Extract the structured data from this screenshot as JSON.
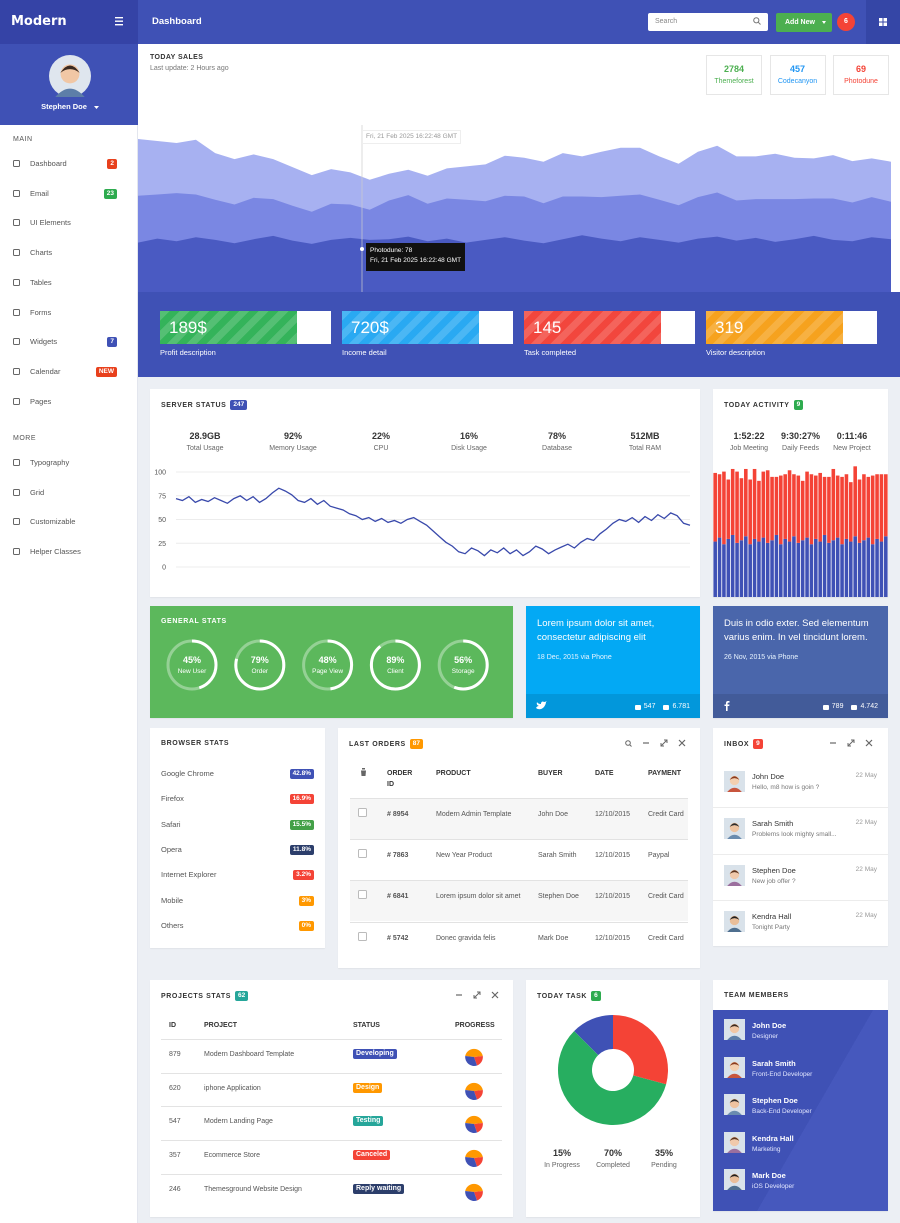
{
  "brand": "Modern",
  "header": {
    "title": "Dashboard",
    "search": "Search",
    "add_new": "Add New",
    "notifications": "6"
  },
  "profile": {
    "name": "Stephen Doe"
  },
  "sidebar": {
    "main": "MAIN",
    "items": [
      {
        "label": "Dashboard",
        "badge": "2",
        "badge_color": "#e8401c"
      },
      {
        "label": "Email",
        "badge": "23",
        "badge_color": "#2eab4f"
      },
      {
        "label": "UI Elements"
      },
      {
        "label": "Charts"
      },
      {
        "label": "Tables"
      },
      {
        "label": "Forms"
      },
      {
        "label": "Widgets",
        "badge": "7",
        "badge_color": "#3f51b5"
      },
      {
        "label": "Calendar",
        "badge": "NEW",
        "badge_color": "#e8401c"
      },
      {
        "label": "Pages"
      }
    ],
    "more": "MORE",
    "more_items": [
      {
        "label": "Typography"
      },
      {
        "label": "Grid"
      },
      {
        "label": "Customizable"
      },
      {
        "label": "Helper Classes"
      }
    ]
  },
  "sales": {
    "title": "TODAY SALES",
    "subtitle": "Last update: 2 Hours ago",
    "sources": [
      {
        "value": 2784,
        "label": "Themeforest",
        "color": "#4caf50"
      },
      {
        "value": 457,
        "label": "Codecanyon",
        "color": "#2196f3"
      },
      {
        "value": 69,
        "label": "Photodune",
        "color": "#f44336"
      }
    ],
    "chart": {
      "type": "area",
      "stacked": true,
      "ylim": [
        0,
        250
      ],
      "series": [
        {
          "color": "#4a5ac2",
          "values": [
            74,
            80,
            76,
            82,
            78,
            73,
            79,
            84,
            77,
            72,
            78,
            81,
            78,
            79,
            83,
            76,
            80,
            74,
            78,
            82,
            77,
            73,
            79,
            85,
            80,
            76,
            82,
            78,
            74,
            80,
            83,
            77,
            81,
            75,
            79,
            84,
            78,
            76,
            82,
            79
          ]
        },
        {
          "color": "#7a87e3",
          "values": [
            70,
            66,
            72,
            64,
            60,
            58,
            62,
            55,
            52,
            48,
            54,
            50,
            45,
            58,
            62,
            56,
            60,
            64,
            58,
            62,
            66,
            60,
            64,
            58,
            62,
            68,
            64,
            60,
            56,
            62,
            66,
            60,
            58,
            64,
            60,
            56,
            62,
            58,
            60,
            56
          ]
        },
        {
          "color": "#a7b1f1",
          "values": [
            85,
            80,
            75,
            82,
            70,
            68,
            65,
            60,
            58,
            55,
            52,
            48,
            45,
            40,
            38,
            42,
            45,
            50,
            55,
            60,
            58,
            62,
            65,
            60,
            68,
            72,
            70,
            65,
            62,
            68,
            70,
            66,
            64,
            68,
            62,
            60,
            65,
            62,
            58,
            60
          ]
        }
      ],
      "tooltip": {
        "date": "Fri, 21 Feb 2025 16:22:48 GMT",
        "text": "Photodune: 78"
      }
    },
    "boxes": [
      {
        "value": "189$",
        "label": "Profit description",
        "color": "#34b35a"
      },
      {
        "value": "720$",
        "label": "Income detail",
        "color": "#29a9f2"
      },
      {
        "value": "145",
        "label": "Task completed",
        "color": "#f2463d"
      },
      {
        "value": "319",
        "label": "Visitor description",
        "color": "#f6a21e"
      }
    ]
  },
  "server": {
    "title": "SERVER STATUS",
    "badge": "247",
    "badge_color": "#3f51b5",
    "stats": [
      {
        "value": "28.9GB",
        "label": "Total Usage"
      },
      {
        "value": "92%",
        "label": "Memory Usage"
      },
      {
        "value": "22%",
        "label": "CPU"
      },
      {
        "value": "16%",
        "label": "Disk Usage"
      },
      {
        "value": "78%",
        "label": "Database"
      },
      {
        "value": "512MB",
        "label": "Total RAM"
      }
    ],
    "chart": {
      "type": "line",
      "color": "#3949ab",
      "ylim": [
        0,
        100
      ],
      "yticks": [
        0,
        25,
        50,
        75,
        100
      ],
      "grid": true,
      "values": [
        72,
        70,
        74,
        68,
        71,
        69,
        73,
        70,
        67,
        72,
        75,
        70,
        74,
        68,
        72,
        78,
        83,
        80,
        76,
        70,
        68,
        72,
        66,
        70,
        64,
        62,
        60,
        56,
        54,
        50,
        52,
        48,
        51,
        47,
        49,
        46,
        50,
        52,
        48,
        44,
        38,
        32,
        26,
        22,
        16,
        14,
        20,
        17,
        12,
        18,
        15,
        20,
        14,
        18,
        12,
        16,
        22,
        19,
        14,
        18,
        21,
        24,
        20,
        26,
        30,
        28,
        35,
        40,
        46,
        50,
        48,
        52,
        47,
        53,
        49,
        55,
        51,
        57,
        54,
        46,
        44
      ]
    }
  },
  "activity": {
    "title": "TODAY ACTIVITY",
    "badge": "9",
    "badge_color": "#2eab4f",
    "stats": [
      {
        "value": "1:52:22",
        "label": "Job Meeting"
      },
      {
        "value": "9:30:27%",
        "label": "Daily Feeds"
      },
      {
        "value": "0:11:46",
        "label": "New Project"
      }
    ],
    "chart": {
      "type": "bar",
      "stacked": true,
      "ylim": [
        0,
        100
      ],
      "series": [
        {
          "color": "#3f51b5",
          "values": [
            42,
            45,
            40,
            44,
            47,
            41,
            43,
            46,
            40,
            44,
            42,
            45,
            41,
            43,
            47,
            40,
            44,
            42,
            46,
            41,
            43,
            45,
            40,
            44,
            42,
            47,
            41,
            43,
            45,
            40,
            44,
            42,
            46,
            41,
            43,
            45,
            40,
            44,
            42,
            46
          ]
        },
        {
          "color": "#f44336",
          "values": [
            52,
            48,
            55,
            45,
            50,
            54,
            47,
            51,
            49,
            53,
            46,
            50,
            55,
            48,
            44,
            52,
            49,
            54,
            47,
            51,
            45,
            50,
            53,
            48,
            52,
            44,
            50,
            54,
            47,
            51,
            49,
            45,
            53,
            48,
            50,
            46,
            52,
            49,
            51,
            47
          ]
        }
      ]
    }
  },
  "general": {
    "title": "GENERAL STATS",
    "color": "#5cb85c",
    "items": [
      {
        "value": 45,
        "value_label": "45%",
        "label": "New User"
      },
      {
        "value": 79,
        "value_label": "79%",
        "label": "Order"
      },
      {
        "value": 48,
        "value_label": "48%",
        "label": "Page View"
      },
      {
        "value": 89,
        "value_label": "89%",
        "label": "Client"
      },
      {
        "value": 56,
        "value_label": "56%",
        "label": "Storage"
      }
    ]
  },
  "twitter": {
    "text": "Lorem ipsum dolor sit amet, consectetur adipiscing elit",
    "date": "18 Dec, 2015 via Phone",
    "retweets": "547",
    "favorites": "6.781",
    "color": "#03a9f4"
  },
  "facebook": {
    "text": "Duis in odio exter. Sed elementum varius enim. In vel tincidunt lorem.",
    "date": "26 Nov, 2015 via Phone",
    "likes": "789",
    "comments": "4.742",
    "color": "#4a66ab"
  },
  "browser": {
    "title": "BROWSER STATS",
    "items": [
      {
        "name": "Google Chrome",
        "value": "42.8%",
        "color": "#3f51b5"
      },
      {
        "name": "Firefox",
        "value": "16.9%",
        "color": "#f44336"
      },
      {
        "name": "Safari",
        "value": "15.5%",
        "color": "#43a047"
      },
      {
        "name": "Opera",
        "value": "11.8%",
        "color": "#2c3e6b"
      },
      {
        "name": "Internet Explorer",
        "value": "3.2%",
        "color": "#f44336"
      },
      {
        "name": "Mobile",
        "value": "3%",
        "color": "#ff9800"
      },
      {
        "name": "Others",
        "value": "0%",
        "color": "#ff9800"
      }
    ]
  },
  "orders": {
    "title": "LAST ORDERS",
    "badge": "87",
    "badge_color": "#ff9800",
    "columns": [
      "ORDER ID",
      "PRODUCT",
      "BUYER",
      "DATE",
      "PAYMENT"
    ],
    "rows": [
      [
        "# 8954",
        "Modern Admin Template",
        "John Doe",
        "12/10/2015",
        "Credit Card"
      ],
      [
        "# 7863",
        "New Year Product",
        "Sarah Smith",
        "12/10/2015",
        "Paypal"
      ],
      [
        "# 6841",
        "Lorem ipsum dolor sit amet",
        "Stephen Doe",
        "12/10/2015",
        "Credit Card"
      ],
      [
        "# 5742",
        "Donec gravida felis",
        "Mark Doe",
        "12/10/2015",
        "Credit Card"
      ]
    ]
  },
  "inbox": {
    "title": "INBOX",
    "badge": "9",
    "badge_color": "#f44336",
    "messages": [
      {
        "from": "John Doe",
        "text": "Hello, m8 how is goin ?",
        "date": "22 May"
      },
      {
        "from": "Sarah Smith",
        "text": "Problems look mighty small...",
        "date": "22 May"
      },
      {
        "from": "Stephen Doe",
        "text": "New job offer ?",
        "date": "22 May"
      },
      {
        "from": "Kendra Hall",
        "text": "Tonight Party",
        "date": "22 May"
      }
    ]
  },
  "projects": {
    "title": "PROJECTS STATS",
    "badge": "62",
    "badge_color": "#26a69a",
    "columns": [
      "ID",
      "PROJECT",
      "STATUS",
      "PROGRESS"
    ],
    "rows": [
      {
        "id": "879",
        "project": "Modern Dashboard Template",
        "status": "Developing",
        "color": "#3f51b5"
      },
      {
        "id": "620",
        "project": "iphone Application",
        "status": "Design",
        "color": "#ff9800"
      },
      {
        "id": "547",
        "project": "Modern Landing Page",
        "status": "Testing",
        "color": "#26a69a"
      },
      {
        "id": "357",
        "project": "Ecommerce Store",
        "status": "Canceled",
        "color": "#f44336"
      },
      {
        "id": "246",
        "project": "Themesground Website Design",
        "status": "Reply waiting",
        "color": "#2c3e6b"
      }
    ]
  },
  "task": {
    "title": "TODAY TASK",
    "badge": "6",
    "badge_color": "#2eab4f",
    "chart": {
      "type": "pie",
      "categories": [
        "In Progress",
        "Completed",
        "Pending"
      ],
      "values": [
        15,
        70,
        35
      ],
      "value_labels": [
        "15%",
        "70%",
        "35%"
      ],
      "colors": [
        "#3f51b5",
        "#27ae60",
        "#f44336"
      ]
    }
  },
  "team": {
    "title": "TEAM MEMBERS",
    "members": [
      {
        "name": "John Doe",
        "role": "Designer"
      },
      {
        "name": "Sarah Smith",
        "role": "Front-End Developer"
      },
      {
        "name": "Stephen Doe",
        "role": "Back-End Developer"
      },
      {
        "name": "Kendra Hall",
        "role": "Marketing"
      },
      {
        "name": "Mark Doe",
        "role": "iOS Developer"
      }
    ]
  }
}
